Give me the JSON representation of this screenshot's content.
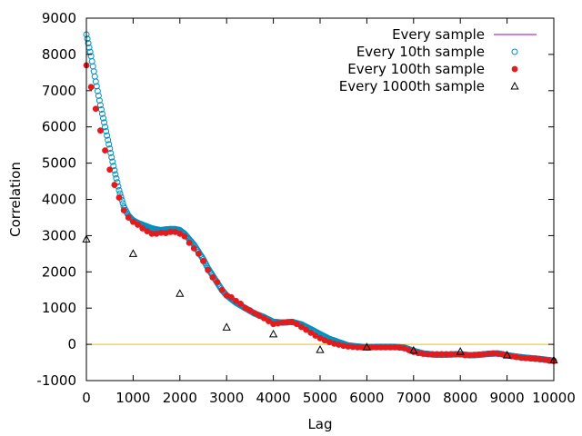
{
  "chart_data": {
    "type": "scatter",
    "xlabel": "Lag",
    "ylabel": "Correlation",
    "xlim": [
      0,
      10000
    ],
    "ylim": [
      -1000,
      9000
    ],
    "x_ticks": [
      0,
      1000,
      2000,
      3000,
      4000,
      5000,
      6000,
      7000,
      8000,
      9000,
      10000
    ],
    "y_ticks": [
      -1000,
      0,
      1000,
      2000,
      3000,
      4000,
      5000,
      6000,
      7000,
      8000,
      9000
    ],
    "grid": false,
    "legend_position": "top-right",
    "zero_line": {
      "y": 0,
      "color": "#f0c000"
    },
    "series": [
      {
        "name": "Every sample",
        "style": "line",
        "color": "#9400d3",
        "points": []
      },
      {
        "name": "Every 10th sample",
        "style": "open-circle",
        "color": "#0090c0",
        "points": [
          [
            0,
            8550
          ],
          [
            100,
            7950
          ],
          [
            200,
            7250
          ],
          [
            300,
            6600
          ],
          [
            400,
            6000
          ],
          [
            500,
            5400
          ],
          [
            600,
            4800
          ],
          [
            700,
            4250
          ],
          [
            800,
            3800
          ],
          [
            900,
            3550
          ],
          [
            1000,
            3420
          ],
          [
            1100,
            3350
          ],
          [
            1200,
            3300
          ],
          [
            1300,
            3250
          ],
          [
            1400,
            3200
          ],
          [
            1500,
            3170
          ],
          [
            1600,
            3150
          ],
          [
            1700,
            3170
          ],
          [
            1800,
            3180
          ],
          [
            1900,
            3180
          ],
          [
            2000,
            3150
          ],
          [
            2100,
            3050
          ],
          [
            2200,
            2900
          ],
          [
            2300,
            2750
          ],
          [
            2400,
            2550
          ],
          [
            2500,
            2350
          ],
          [
            2600,
            2100
          ],
          [
            2700,
            1900
          ],
          [
            2800,
            1700
          ],
          [
            2900,
            1500
          ],
          [
            3000,
            1350
          ],
          [
            3200,
            1150
          ],
          [
            3400,
            1000
          ],
          [
            3600,
            850
          ],
          [
            3800,
            750
          ],
          [
            4000,
            620
          ],
          [
            4200,
            600
          ],
          [
            4400,
            620
          ],
          [
            4600,
            550
          ],
          [
            4800,
            420
          ],
          [
            5000,
            280
          ],
          [
            5200,
            150
          ],
          [
            5400,
            60
          ],
          [
            5600,
            -30
          ],
          [
            5800,
            -60
          ],
          [
            6000,
            -80
          ],
          [
            6200,
            -70
          ],
          [
            6400,
            -70
          ],
          [
            6600,
            -70
          ],
          [
            6800,
            -90
          ],
          [
            7000,
            -180
          ],
          [
            7200,
            -250
          ],
          [
            7400,
            -280
          ],
          [
            7600,
            -290
          ],
          [
            7800,
            -280
          ],
          [
            8000,
            -270
          ],
          [
            8200,
            -300
          ],
          [
            8400,
            -290
          ],
          [
            8600,
            -260
          ],
          [
            8800,
            -250
          ],
          [
            9000,
            -300
          ],
          [
            9200,
            -340
          ],
          [
            9400,
            -370
          ],
          [
            9600,
            -390
          ],
          [
            9800,
            -420
          ],
          [
            10000,
            -450
          ]
        ]
      },
      {
        "name": "Every 100th sample",
        "style": "filled-circle",
        "color": "#e41a1c",
        "points": [
          [
            0,
            7700
          ],
          [
            100,
            7100
          ],
          [
            200,
            6500
          ],
          [
            300,
            5900
          ],
          [
            400,
            5350
          ],
          [
            500,
            4820
          ],
          [
            600,
            4400
          ],
          [
            700,
            4050
          ],
          [
            800,
            3700
          ],
          [
            900,
            3500
          ],
          [
            1000,
            3380
          ],
          [
            1100,
            3300
          ],
          [
            1200,
            3200
          ],
          [
            1300,
            3120
          ],
          [
            1400,
            3050
          ],
          [
            1500,
            3050
          ],
          [
            1600,
            3080
          ],
          [
            1700,
            3070
          ],
          [
            1800,
            3100
          ],
          [
            1900,
            3100
          ],
          [
            2000,
            3050
          ],
          [
            2100,
            2980
          ],
          [
            2200,
            2800
          ],
          [
            2300,
            2650
          ],
          [
            2400,
            2500
          ],
          [
            2500,
            2300
          ],
          [
            2600,
            2050
          ],
          [
            2700,
            1850
          ],
          [
            2800,
            1720
          ],
          [
            2900,
            1500
          ],
          [
            3000,
            1350
          ],
          [
            3100,
            1300
          ],
          [
            3200,
            1200
          ],
          [
            3300,
            1120
          ],
          [
            3400,
            1000
          ],
          [
            3500,
            940
          ],
          [
            3600,
            860
          ],
          [
            3700,
            790
          ],
          [
            3800,
            720
          ],
          [
            3900,
            640
          ],
          [
            4000,
            560
          ],
          [
            4100,
            580
          ],
          [
            4200,
            600
          ],
          [
            4300,
            610
          ],
          [
            4400,
            620
          ],
          [
            4500,
            560
          ],
          [
            4600,
            480
          ],
          [
            4700,
            400
          ],
          [
            4800,
            320
          ],
          [
            4900,
            240
          ],
          [
            5000,
            170
          ],
          [
            5100,
            110
          ],
          [
            5200,
            60
          ],
          [
            5300,
            20
          ],
          [
            5400,
            -10
          ],
          [
            5500,
            -40
          ],
          [
            5600,
            -60
          ],
          [
            5700,
            -70
          ],
          [
            5800,
            -80
          ],
          [
            5900,
            -80
          ],
          [
            6000,
            -80
          ],
          [
            6100,
            -80
          ],
          [
            6200,
            -80
          ],
          [
            6300,
            -80
          ],
          [
            6400,
            -80
          ],
          [
            6500,
            -80
          ],
          [
            6600,
            -80
          ],
          [
            6700,
            -90
          ],
          [
            6800,
            -110
          ],
          [
            6900,
            -160
          ],
          [
            7000,
            -210
          ],
          [
            7100,
            -240
          ],
          [
            7200,
            -260
          ],
          [
            7300,
            -270
          ],
          [
            7400,
            -270
          ],
          [
            7500,
            -270
          ],
          [
            7600,
            -270
          ],
          [
            7700,
            -270
          ],
          [
            7800,
            -270
          ],
          [
            7900,
            -270
          ],
          [
            8000,
            -280
          ],
          [
            8100,
            -300
          ],
          [
            8200,
            -300
          ],
          [
            8300,
            -290
          ],
          [
            8400,
            -280
          ],
          [
            8500,
            -270
          ],
          [
            8600,
            -260
          ],
          [
            8700,
            -250
          ],
          [
            8800,
            -260
          ],
          [
            8900,
            -270
          ],
          [
            9000,
            -300
          ],
          [
            9100,
            -330
          ],
          [
            9200,
            -350
          ],
          [
            9300,
            -370
          ],
          [
            9400,
            -380
          ],
          [
            9500,
            -390
          ],
          [
            9600,
            -400
          ],
          [
            9700,
            -410
          ],
          [
            9800,
            -420
          ],
          [
            9900,
            -450
          ],
          [
            10000,
            -460
          ]
        ]
      },
      {
        "name": "Every 1000th sample",
        "style": "open-triangle",
        "color": "#000000",
        "points": [
          [
            0,
            2900
          ],
          [
            1000,
            2500
          ],
          [
            2000,
            1400
          ],
          [
            3000,
            470
          ],
          [
            4000,
            280
          ],
          [
            5000,
            -150
          ],
          [
            6000,
            -80
          ],
          [
            7000,
            -170
          ],
          [
            8000,
            -200
          ],
          [
            9000,
            -300
          ],
          [
            10000,
            -440
          ]
        ]
      }
    ]
  }
}
